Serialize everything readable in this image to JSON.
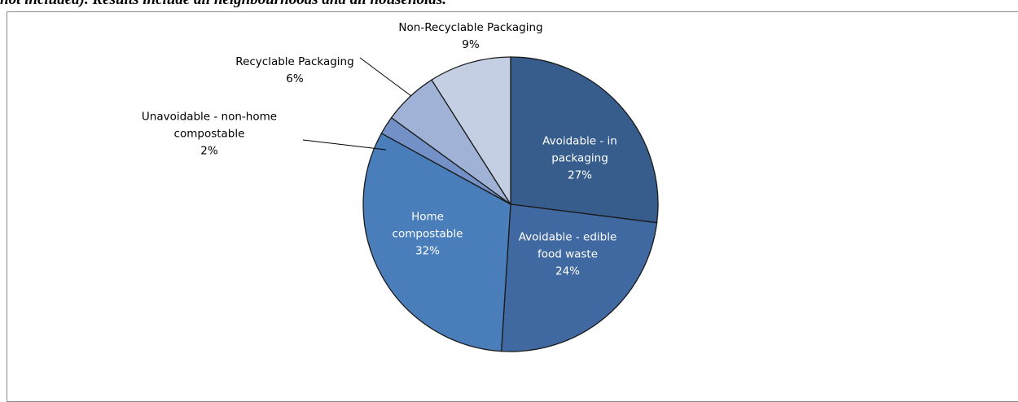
{
  "chart_data": {
    "type": "pie",
    "caption": "not included). Results include all neighbourhoods and all households.",
    "categories": [
      "Avoidable - in packaging",
      "Avoidable - edible food waste",
      "Home compostable",
      "Unavoidable - non-home compostable",
      "Recyclable Packaging",
      "Non-Recyclable Packaging"
    ],
    "values": [
      27,
      24,
      32,
      2,
      6,
      9
    ],
    "value_labels": [
      "27%",
      "24%",
      "32%",
      "2%",
      "6%",
      "9%"
    ],
    "colors": [
      "#375d8c",
      "#3f69a0",
      "#4a7ebb",
      "#7391c6",
      "#a0b3d6",
      "#c5cfe4"
    ]
  }
}
